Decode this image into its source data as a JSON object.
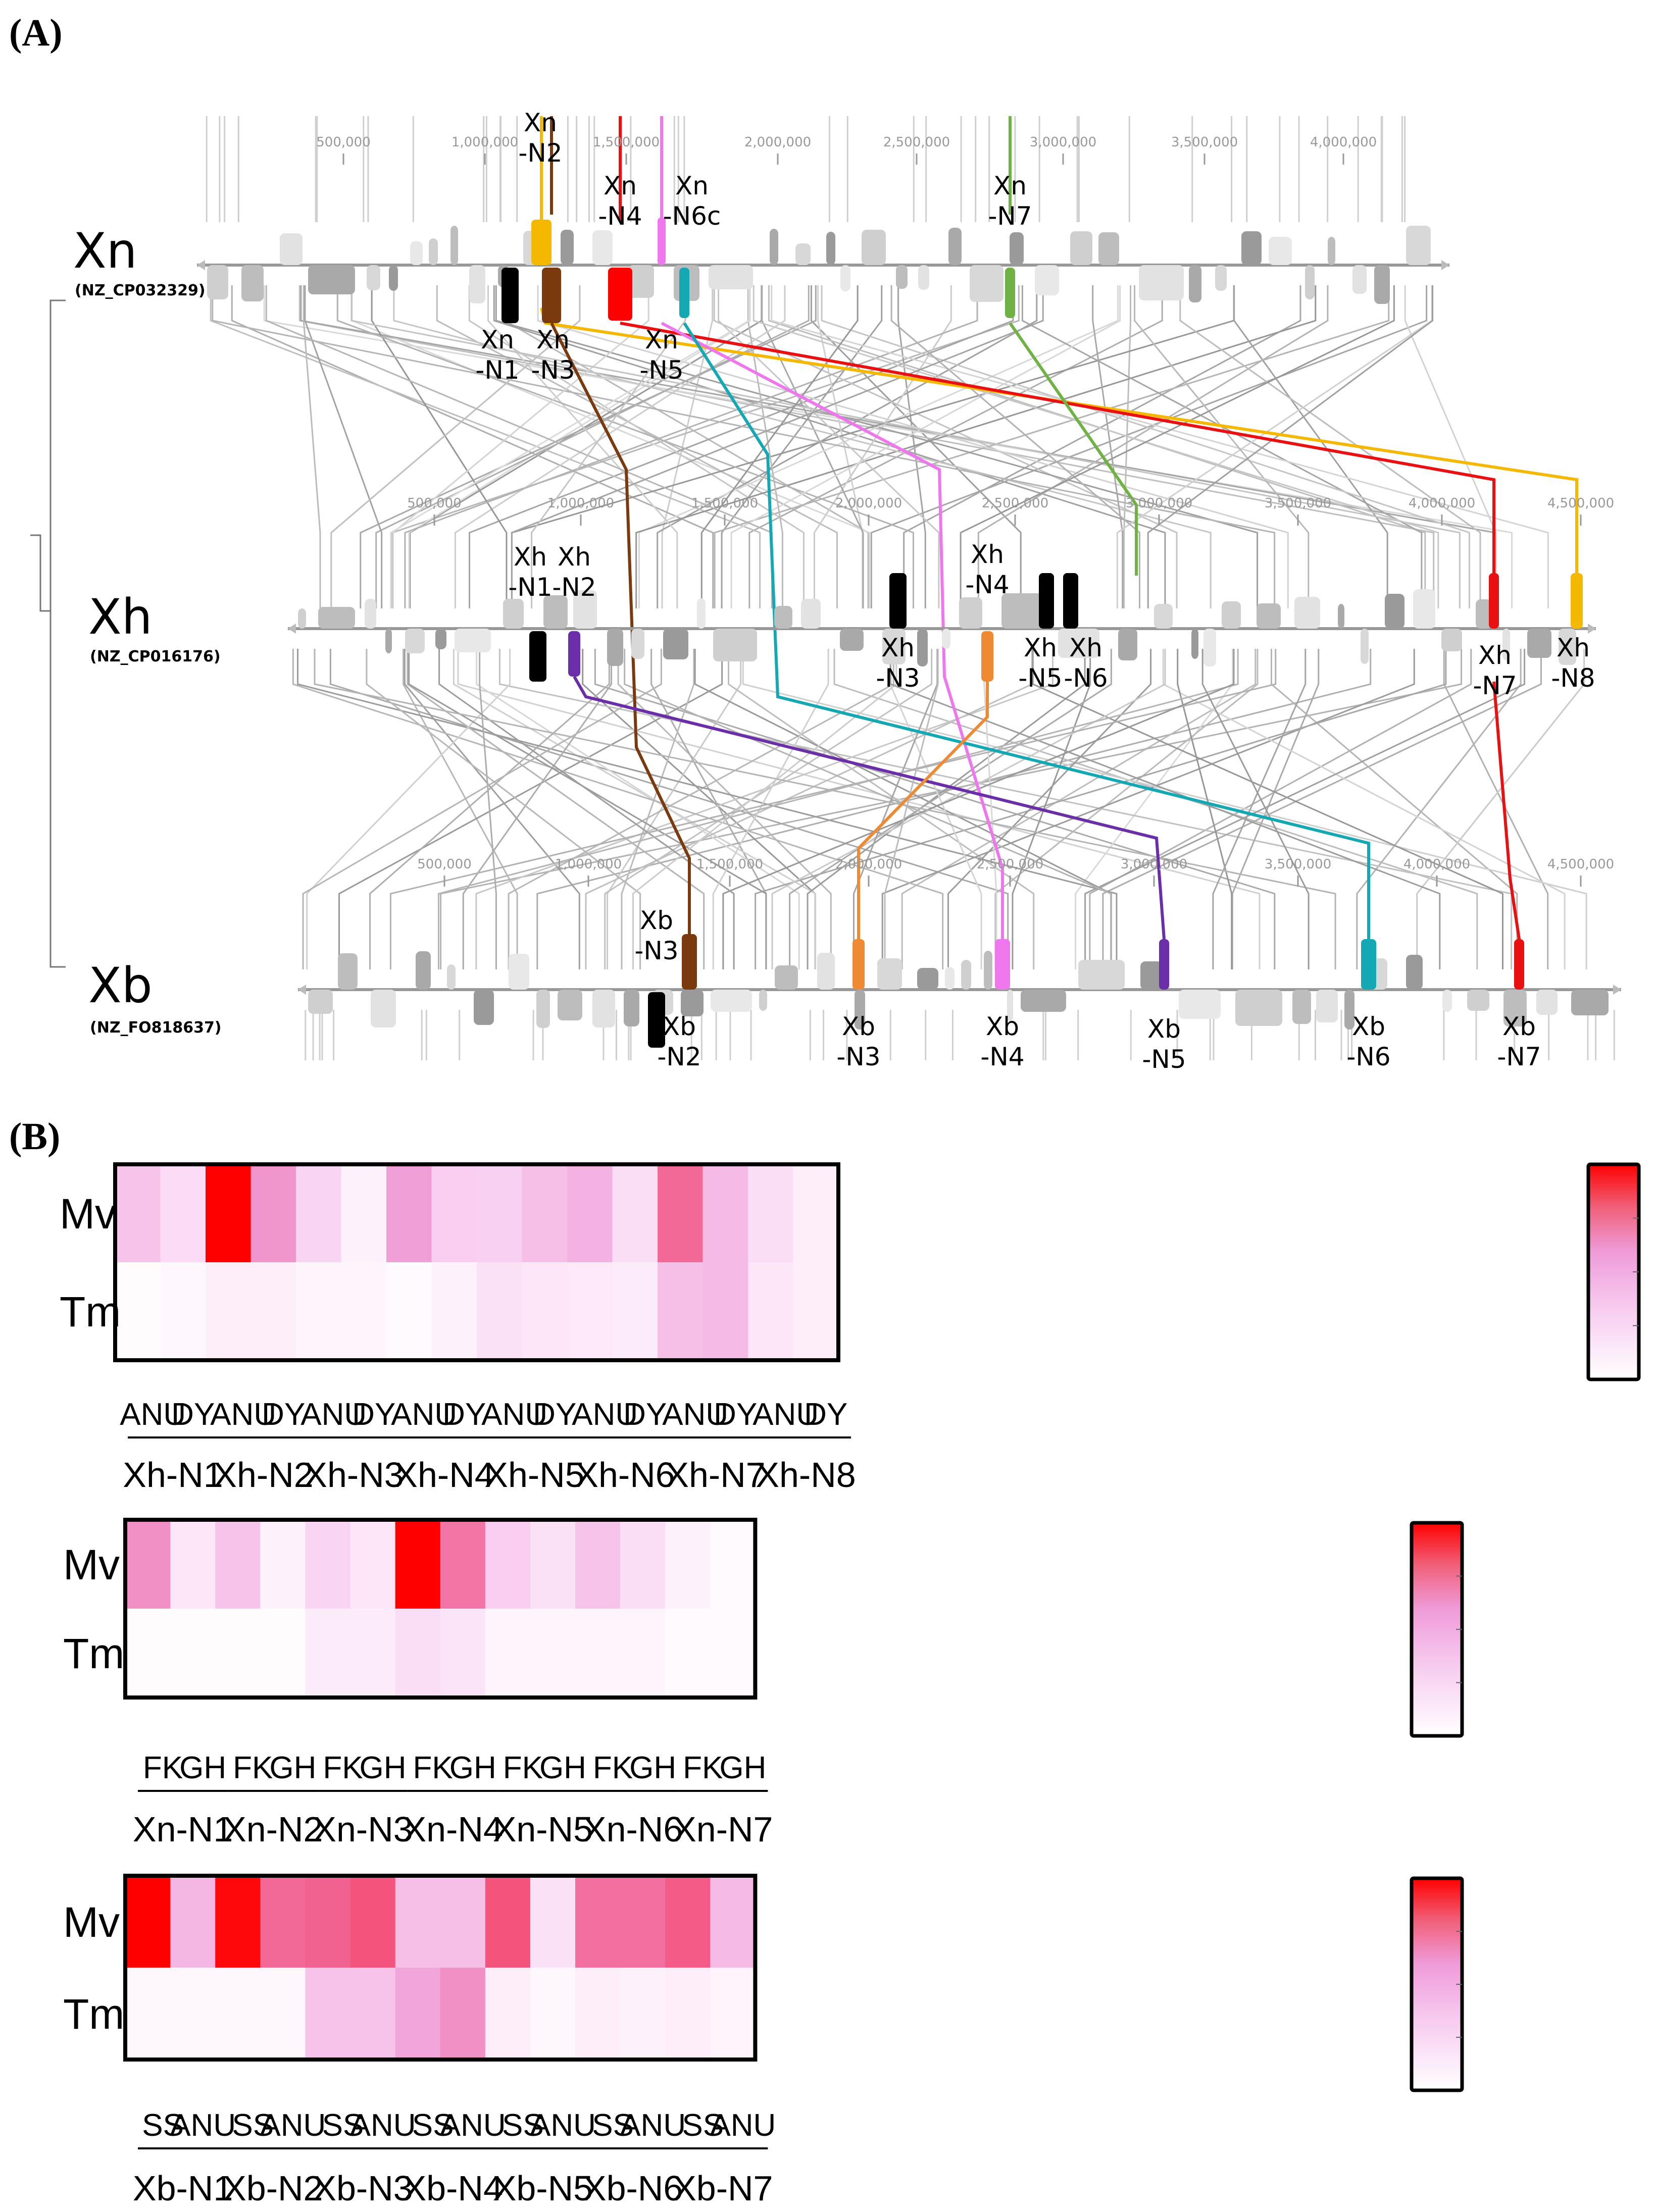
{
  "panel_a_label": "(A)",
  "panel_b_label": "(B)",
  "genomes": [
    {
      "id": "xn",
      "name": "Xn",
      "accession": "(NZ_CP032329)",
      "ticks": [
        "500,000",
        "1,000,000",
        "1,500,000",
        "2,000,000",
        "2,500,000",
        "3,000,000",
        "3,500,000",
        "4,000,000"
      ],
      "islands": [
        {
          "l1": "Xn",
          "l2": "-N1",
          "color": "#000000"
        },
        {
          "l1": "Xn",
          "l2": "-N2",
          "color": "#f5b800"
        },
        {
          "l1": "Xn",
          "l2": "-N3",
          "color": "#7b3a0e"
        },
        {
          "l1": "Xn",
          "l2": "-N4",
          "color": "#ff0000"
        },
        {
          "l1": "Xn",
          "l2": "-N5",
          "color": "#ee77ee"
        },
        {
          "l1": "Xn",
          "l2": "-N6c",
          "color": "#13a8b4"
        },
        {
          "l1": "Xn",
          "l2": "-N7",
          "color": "#6fb244"
        }
      ]
    },
    {
      "id": "xh",
      "name": "Xh",
      "accession": "(NZ_CP016176)",
      "ticks": [
        "500,000",
        "1,000,000",
        "1,500,000",
        "2,000,000",
        "2,500,000",
        "3,000,000",
        "3,500,000",
        "4,000,000",
        "4,500,000"
      ],
      "islands": [
        {
          "l1": "Xh",
          "l2": "-N1",
          "color": "#000000"
        },
        {
          "l1": "Xh",
          "l2": "-N2",
          "color": "#6a2ea8"
        },
        {
          "l1": "Xh",
          "l2": "-N3",
          "color": "#000000"
        },
        {
          "l1": "Xh",
          "l2": "-N4",
          "color": "#ef8a34"
        },
        {
          "l1": "Xh",
          "l2": "-N5",
          "color": "#000000"
        },
        {
          "l1": "Xh",
          "l2": "-N6",
          "color": "#000000"
        },
        {
          "l1": "Xh",
          "l2": "-N7",
          "color": "#e81010"
        },
        {
          "l1": "Xh",
          "l2": "-N8",
          "color": "#f5b800"
        }
      ]
    },
    {
      "id": "xb",
      "name": "Xb",
      "accession": "(NZ_FO818637)",
      "ticks": [
        "500,000",
        "1,000,000",
        "1,500,000",
        "2,000,000",
        "2,500,000",
        "3,000,000",
        "3,500,000",
        "4,000,000",
        "4,500,000"
      ],
      "islands": [
        {
          "l1": "Xb",
          "l2": "-N2",
          "color": "#000000"
        },
        {
          "l1": "Xb",
          "l2": "-N3",
          "color": "#7b3a0e"
        },
        {
          "l1": "Xb",
          "l2": "-N3",
          "color": "#ef8a34"
        },
        {
          "l1": "Xb",
          "l2": "-N4",
          "color": "#ee77ee"
        },
        {
          "l1": "Xb",
          "l2": "-N5",
          "color": "#6a2ea8"
        },
        {
          "l1": "Xb",
          "l2": "-N6",
          "color": "#13a8b4"
        },
        {
          "l1": "Xb",
          "l2": "-N7",
          "color": "#e81010"
        }
      ]
    }
  ],
  "links": [
    {
      "name": "link-orange",
      "color": "#f5b800"
    },
    {
      "name": "link-brown",
      "color": "#7b3a0e"
    },
    {
      "name": "link-red",
      "color": "#e81010"
    },
    {
      "name": "link-magenta",
      "color": "#ee77ee"
    },
    {
      "name": "link-teal",
      "color": "#13a8b4"
    },
    {
      "name": "link-green",
      "color": "#6fb244"
    },
    {
      "name": "link-purple",
      "color": "#6a2ea8"
    },
    {
      "name": "link-orange2",
      "color": "#ef8a34"
    }
  ],
  "heatmaps": [
    {
      "id": "xh",
      "rows": [
        "Mv",
        "Tm"
      ],
      "groups": [
        "Xh-N1",
        "Xh-N2",
        "Xh-N3",
        "Xh-N4",
        "Xh-N5",
        "Xh-N6",
        "Xh-N7",
        "Xh-N8"
      ],
      "sub_labels": [
        "ANU",
        "DY"
      ],
      "values": [
        [
          0.35,
          0.22,
          1.0,
          0.58,
          0.25,
          0.08,
          0.55,
          0.3,
          0.28,
          0.38,
          0.45,
          0.2,
          0.72,
          0.4,
          0.2,
          0.1
        ],
        [
          0.02,
          0.05,
          0.1,
          0.1,
          0.06,
          0.06,
          0.03,
          0.08,
          0.18,
          0.15,
          0.14,
          0.12,
          0.38,
          0.4,
          0.15,
          0.1
        ]
      ]
    },
    {
      "id": "xn",
      "rows": [
        "Mv",
        "Tm"
      ],
      "groups": [
        "Xn-N1",
        "Xn-N2",
        "Xn-N3",
        "Xn-N4",
        "Xn-N5",
        "Xn-N6",
        "Xn-N7"
      ],
      "sub_labels": [
        "FK",
        "GH"
      ],
      "values": [
        [
          0.6,
          0.15,
          0.35,
          0.08,
          0.25,
          0.15,
          1.0,
          0.68,
          0.3,
          0.18,
          0.35,
          0.2,
          0.08,
          0.03
        ],
        [
          0.02,
          0.02,
          0.02,
          0.02,
          0.12,
          0.12,
          0.2,
          0.16,
          0.06,
          0.06,
          0.06,
          0.06,
          0.03,
          0.03
        ]
      ]
    },
    {
      "id": "xb",
      "rows": [
        "Mv",
        "Tm"
      ],
      "groups": [
        "Xb-N1",
        "Xb-N2",
        "Xb-N3",
        "Xb-N4",
        "Xb-N5",
        "Xb-N6",
        "Xb-N7"
      ],
      "sub_labels": [
        "SS",
        "ANU"
      ],
      "values": [
        [
          1.0,
          0.42,
          0.98,
          0.72,
          0.74,
          0.78,
          0.38,
          0.38,
          0.78,
          0.18,
          0.7,
          0.7,
          0.76,
          0.4
        ],
        [
          0.04,
          0.04,
          0.04,
          0.04,
          0.35,
          0.35,
          0.52,
          0.6,
          0.1,
          0.04,
          0.1,
          0.08,
          0.1,
          0.06
        ]
      ]
    }
  ]
}
